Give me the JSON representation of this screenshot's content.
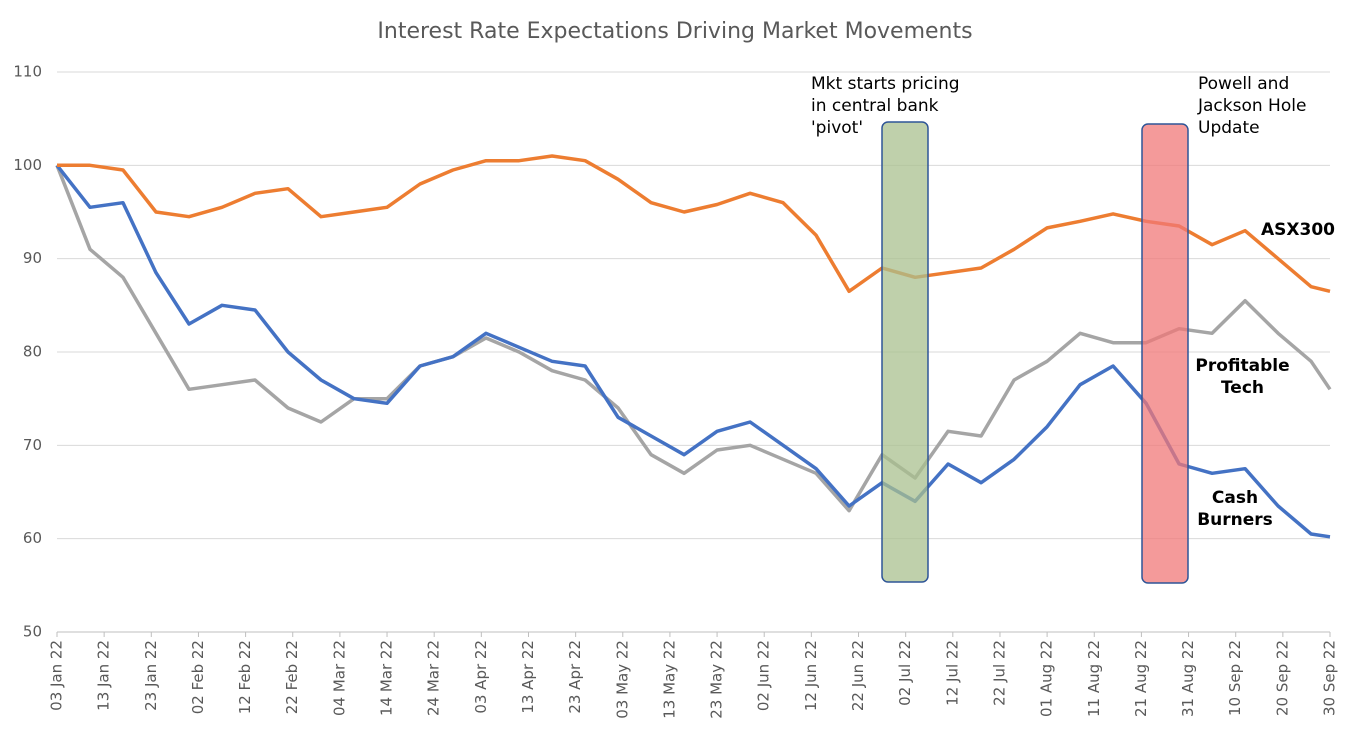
{
  "chart_data": {
    "type": "line",
    "title": "Interest Rate Expectations Driving Market Movements",
    "annotations": [
      "Mkt starts pricing in central bank 'pivot'",
      "Powell and Jackson Hole Update"
    ],
    "x": [
      "2022-01-03",
      "2022-01-10",
      "2022-01-17",
      "2022-01-24",
      "2022-01-31",
      "2022-02-07",
      "2022-02-14",
      "2022-02-21",
      "2022-02-28",
      "2022-03-07",
      "2022-03-14",
      "2022-03-21",
      "2022-03-28",
      "2022-04-04",
      "2022-04-11",
      "2022-04-18",
      "2022-04-25",
      "2022-05-02",
      "2022-05-09",
      "2022-05-16",
      "2022-05-23",
      "2022-05-30",
      "2022-06-06",
      "2022-06-13",
      "2022-06-20",
      "2022-06-27",
      "2022-07-04",
      "2022-07-11",
      "2022-07-18",
      "2022-07-25",
      "2022-08-01",
      "2022-08-08",
      "2022-08-15",
      "2022-08-22",
      "2022-08-29",
      "2022-09-05",
      "2022-09-12",
      "2022-09-19",
      "2022-09-26",
      "2022-09-30"
    ],
    "series": [
      {
        "name": "ASX300",
        "color": "#ED7D31",
        "values": [
          100,
          100,
          99.5,
          95,
          94.5,
          95.5,
          97,
          97.5,
          94.5,
          95,
          95.5,
          98,
          99.5,
          100.5,
          100.5,
          101,
          100.5,
          98.5,
          96,
          95,
          95.8,
          97,
          96,
          92.5,
          86.5,
          89,
          88,
          88.5,
          89,
          91,
          93.3,
          94,
          94.8,
          94,
          93.5,
          91.5,
          93,
          90,
          87,
          86.5
        ]
      },
      {
        "name": "Profitable Tech",
        "color": "#A5A5A5",
        "values": [
          100,
          91,
          88,
          82,
          76,
          76.5,
          77,
          74,
          72.5,
          75,
          75,
          78.5,
          79.5,
          81.5,
          80,
          78,
          77,
          74,
          69,
          67,
          69.5,
          70,
          68.5,
          67,
          63,
          69,
          66.5,
          71.5,
          71,
          77,
          79,
          82,
          81,
          81,
          82.5,
          82,
          85.5,
          82,
          79,
          76
        ]
      },
      {
        "name": "Cash Burners",
        "color": "#4472C4",
        "values": [
          100,
          95.5,
          96,
          88.5,
          83,
          85,
          84.5,
          80,
          77,
          75,
          74.5,
          78.5,
          79.5,
          82,
          80.5,
          79,
          78.5,
          73,
          71,
          69,
          71.5,
          72.5,
          70,
          67.5,
          63.5,
          66,
          64,
          68,
          66,
          68.5,
          72,
          76.5,
          78.5,
          74.5,
          68,
          67,
          67.5,
          63.5,
          60.5,
          60.2
        ]
      }
    ],
    "xlim": [
      "2022-01-03",
      "2022-09-30"
    ],
    "xticks": [
      {
        "value": "2022-01-03",
        "label": "03 Jan 22"
      },
      {
        "value": "2022-01-13",
        "label": "13 Jan 22"
      },
      {
        "value": "2022-01-23",
        "label": "23 Jan 22"
      },
      {
        "value": "2022-02-02",
        "label": "02 Feb 22"
      },
      {
        "value": "2022-02-12",
        "label": "12 Feb 22"
      },
      {
        "value": "2022-02-22",
        "label": "22 Feb 22"
      },
      {
        "value": "2022-03-04",
        "label": "04 Mar 22"
      },
      {
        "value": "2022-03-14",
        "label": "14 Mar 22"
      },
      {
        "value": "2022-03-24",
        "label": "24 Mar 22"
      },
      {
        "value": "2022-04-03",
        "label": "03 Apr 22"
      },
      {
        "value": "2022-04-13",
        "label": "13 Apr 22"
      },
      {
        "value": "2022-04-23",
        "label": "23 Apr 22"
      },
      {
        "value": "2022-05-03",
        "label": "03 May 22"
      },
      {
        "value": "2022-05-13",
        "label": "13 May 22"
      },
      {
        "value": "2022-05-23",
        "label": "23 May 22"
      },
      {
        "value": "2022-06-02",
        "label": "02 Jun 22"
      },
      {
        "value": "2022-06-12",
        "label": "12 Jun 22"
      },
      {
        "value": "2022-06-22",
        "label": "22 Jun 22"
      },
      {
        "value": "2022-07-02",
        "label": "02 Jul 22"
      },
      {
        "value": "2022-07-12",
        "label": "12 Jul 22"
      },
      {
        "value": "2022-07-22",
        "label": "22 Jul 22"
      },
      {
        "value": "2022-08-01",
        "label": "01 Aug 22"
      },
      {
        "value": "2022-08-11",
        "label": "11 Aug 22"
      },
      {
        "value": "2022-08-21",
        "label": "21 Aug 22"
      },
      {
        "value": "2022-08-31",
        "label": "31 Aug 22"
      },
      {
        "value": "2022-09-10",
        "label": "10 Sep 22"
      },
      {
        "value": "2022-09-20",
        "label": "20 Sep 22"
      },
      {
        "value": "2022-09-30",
        "label": "30 Sep 22"
      }
    ],
    "ylim": [
      50,
      110
    ],
    "yticks": [
      50,
      60,
      70,
      80,
      90,
      100,
      110
    ],
    "grid": true
  }
}
